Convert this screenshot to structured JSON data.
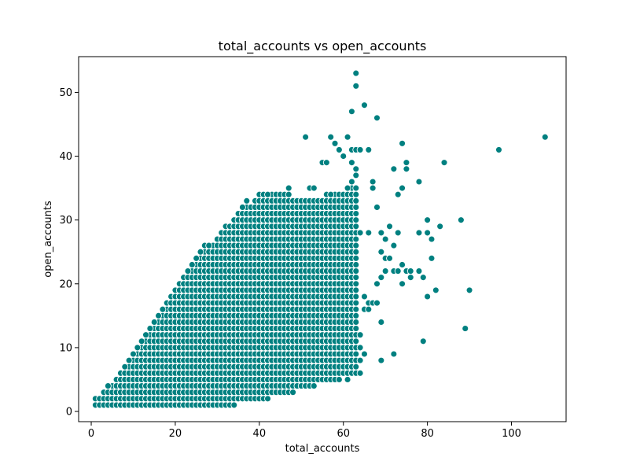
{
  "chart_data": {
    "type": "scatter",
    "title": "total_accounts vs open_accounts",
    "xlabel": "total_accounts",
    "ylabel": "open_accounts",
    "xlim": [
      -3,
      113
    ],
    "ylim": [
      -1.6,
      55.6
    ],
    "xticks": [
      0,
      20,
      40,
      60,
      80,
      100
    ],
    "yticks": [
      0,
      10,
      20,
      30,
      40,
      50
    ],
    "grid": false,
    "marker_color": "#008080",
    "dense_band": {
      "description_free": true,
      "lower_bound": [
        [
          2,
          1
        ],
        [
          10,
          1
        ],
        [
          20,
          1
        ],
        [
          30,
          1
        ],
        [
          40,
          2
        ],
        [
          50,
          4
        ],
        [
          58,
          5
        ],
        [
          62,
          6
        ]
      ],
      "upper_bound": [
        [
          2,
          2
        ],
        [
          5,
          4
        ],
        [
          10,
          8
        ],
        [
          15,
          13
        ],
        [
          20,
          19
        ],
        [
          25,
          23
        ],
        [
          30,
          27
        ],
        [
          35,
          31
        ],
        [
          40,
          33
        ],
        [
          45,
          34
        ],
        [
          50,
          33
        ],
        [
          55,
          33
        ],
        [
          60,
          34
        ],
        [
          63,
          35
        ]
      ],
      "x_range": [
        1,
        63
      ]
    },
    "points": [
      [
        1,
        1
      ],
      [
        2,
        1
      ],
      [
        2,
        2
      ],
      [
        3,
        3
      ],
      [
        3,
        1
      ],
      [
        4,
        4
      ],
      [
        5,
        2
      ],
      [
        6,
        5
      ],
      [
        7,
        6
      ],
      [
        8,
        7
      ],
      [
        9,
        8
      ],
      [
        10,
        9
      ],
      [
        11,
        10
      ],
      [
        12,
        11
      ],
      [
        13,
        12
      ],
      [
        14,
        13
      ],
      [
        15,
        14
      ],
      [
        16,
        15
      ],
      [
        17,
        16
      ],
      [
        18,
        17
      ],
      [
        19,
        18
      ],
      [
        20,
        19
      ],
      [
        21,
        20
      ],
      [
        22,
        21
      ],
      [
        23,
        22
      ],
      [
        24,
        23
      ],
      [
        25,
        24
      ],
      [
        26,
        25
      ],
      [
        27,
        26
      ],
      [
        28,
        26
      ],
      [
        29,
        25
      ],
      [
        30,
        27
      ],
      [
        31,
        28
      ],
      [
        32,
        28
      ],
      [
        33,
        29
      ],
      [
        34,
        30
      ],
      [
        35,
        31
      ],
      [
        36,
        32
      ],
      [
        37,
        33
      ],
      [
        38,
        32
      ],
      [
        40,
        34
      ],
      [
        41,
        34
      ],
      [
        42,
        34
      ],
      [
        44,
        33
      ],
      [
        45,
        34
      ],
      [
        47,
        35
      ],
      [
        49,
        33
      ],
      [
        51,
        33
      ],
      [
        52,
        35
      ],
      [
        53,
        35
      ],
      [
        55,
        33
      ],
      [
        56,
        34
      ],
      [
        57,
        34
      ],
      [
        59,
        33
      ],
      [
        60,
        34
      ],
      [
        61,
        35
      ],
      [
        62,
        36
      ],
      [
        63,
        37
      ],
      [
        11,
        1
      ],
      [
        15,
        1
      ],
      [
        22,
        1
      ],
      [
        24,
        1
      ],
      [
        28,
        1
      ],
      [
        29,
        2
      ],
      [
        32,
        2
      ],
      [
        36,
        2
      ],
      [
        38,
        2
      ],
      [
        42,
        3
      ],
      [
        48,
        3
      ],
      [
        53,
        5
      ],
      [
        56,
        6
      ],
      [
        61,
        5
      ],
      [
        62,
        6
      ],
      [
        51,
        43
      ],
      [
        55,
        39
      ],
      [
        56,
        39
      ],
      [
        57,
        43
      ],
      [
        58,
        42
      ],
      [
        59,
        41
      ],
      [
        60,
        40
      ],
      [
        61,
        43
      ],
      [
        62,
        41
      ],
      [
        62,
        39
      ],
      [
        63,
        38
      ],
      [
        63,
        53
      ],
      [
        63,
        51
      ],
      [
        62,
        47
      ],
      [
        65,
        48
      ],
      [
        68,
        46
      ],
      [
        63,
        41
      ],
      [
        64,
        41
      ],
      [
        66,
        41
      ],
      [
        67,
        36
      ],
      [
        67,
        35
      ],
      [
        68,
        32
      ],
      [
        64,
        28
      ],
      [
        66,
        28
      ],
      [
        69,
        28
      ],
      [
        70,
        27
      ],
      [
        71,
        29
      ],
      [
        72,
        26
      ],
      [
        73,
        28
      ],
      [
        69,
        25
      ],
      [
        70,
        24
      ],
      [
        71,
        24
      ],
      [
        72,
        22
      ],
      [
        73,
        22
      ],
      [
        74,
        23
      ],
      [
        75,
        22
      ],
      [
        76,
        21
      ],
      [
        76,
        22
      ],
      [
        65,
        18
      ],
      [
        66,
        17
      ],
      [
        67,
        17
      ],
      [
        68,
        17
      ],
      [
        65,
        16
      ],
      [
        66,
        16
      ],
      [
        68,
        20
      ],
      [
        69,
        21
      ],
      [
        70,
        22
      ],
      [
        69,
        14
      ],
      [
        64,
        10
      ],
      [
        64,
        8
      ],
      [
        65,
        9
      ],
      [
        64,
        12
      ],
      [
        64,
        6
      ],
      [
        69,
        8
      ],
      [
        72,
        9
      ],
      [
        72,
        38
      ],
      [
        74,
        35
      ],
      [
        73,
        34
      ],
      [
        74,
        42
      ],
      [
        75,
        39
      ],
      [
        75,
        38
      ],
      [
        78,
        36
      ],
      [
        84,
        39
      ],
      [
        74,
        20
      ],
      [
        78,
        28
      ],
      [
        79,
        21
      ],
      [
        80,
        30
      ],
      [
        80,
        28
      ],
      [
        81,
        27
      ],
      [
        81,
        24
      ],
      [
        82,
        19
      ],
      [
        83,
        29
      ],
      [
        80,
        18
      ],
      [
        79,
        11
      ],
      [
        78,
        22
      ],
      [
        88,
        30
      ],
      [
        89,
        13
      ],
      [
        90,
        19
      ],
      [
        97,
        41
      ],
      [
        108,
        43
      ]
    ]
  }
}
